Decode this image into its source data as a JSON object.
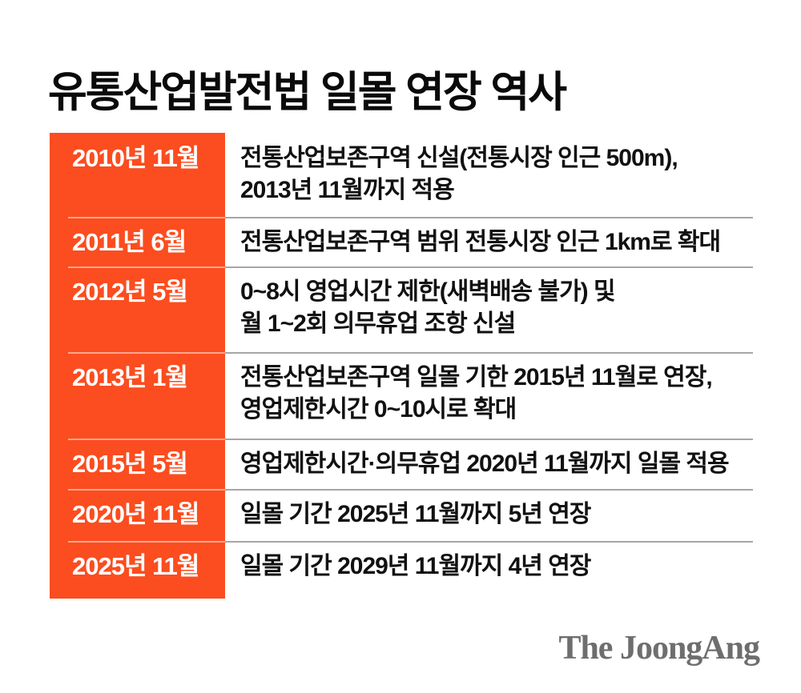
{
  "title": "유통산업발전법 일몰 연장 역사",
  "colors": {
    "accent_orange": "#FB4D1F",
    "date_text": "#FFFFFF",
    "body_text": "#111111",
    "separator_gray": "#A6A6A6",
    "logo_gray": "#6E6E6E",
    "background": "#FFFFFF"
  },
  "timeline": {
    "rows": [
      {
        "date": "2010년 11월",
        "lines": [
          "전통산업보존구역 신설(전통시장 인근 500m),",
          "2013년 11월까지 적용"
        ]
      },
      {
        "date": "2011년 6월",
        "lines": [
          "전통산업보존구역 범위 전통시장 인근 1km로 확대"
        ]
      },
      {
        "date": "2012년 5월",
        "lines": [
          "0~8시 영업시간 제한(새벽배송 불가) 및",
          "월 1~2회 의무휴업 조항 신설"
        ]
      },
      {
        "date": "2013년 1월",
        "lines": [
          "전통산업보존구역 일몰 기한 2015년 11월로 연장,",
          "영업제한시간 0~10시로 확대"
        ]
      },
      {
        "date": "2015년 5월",
        "lines": [
          "영업제한시간·의무휴업 2020년 11월까지 일몰 적용"
        ]
      },
      {
        "date": "2020년 11월",
        "lines": [
          "일몰 기간 2025년 11월까지 5년 연장"
        ]
      },
      {
        "date": "2025년 11월",
        "lines": [
          "일몰 기간 2029년 11월까지 4년 연장"
        ]
      }
    ]
  },
  "footer": {
    "logo_text": "The JoongAng"
  },
  "chart_data": {
    "type": "table",
    "title": "유통산업발전법 일몰 연장 역사",
    "rows": [
      [
        "2010년 11월",
        "전통산업보존구역 신설(전통시장 인근 500m), 2013년 11월까지 적용"
      ],
      [
        "2011년 6월",
        "전통산업보존구역 범위 전통시장 인근 1km로 확대"
      ],
      [
        "2012년 5월",
        "0~8시 영업시간 제한(새벽배송 불가) 및 월 1~2회 의무휴업 조항 신설"
      ],
      [
        "2013년 1월",
        "전통산업보존구역 일몰 기한 2015년 11월로 연장, 영업제한시간 0~10시로 확대"
      ],
      [
        "2015년 5월",
        "영업제한시간·의무휴업 2020년 11월까지 일몰 적용"
      ],
      [
        "2020년 11월",
        "일몰 기간 2025년 11월까지 5년 연장"
      ],
      [
        "2025년 11월",
        "일몰 기간 2029년 11월까지 4년 연장"
      ]
    ]
  }
}
